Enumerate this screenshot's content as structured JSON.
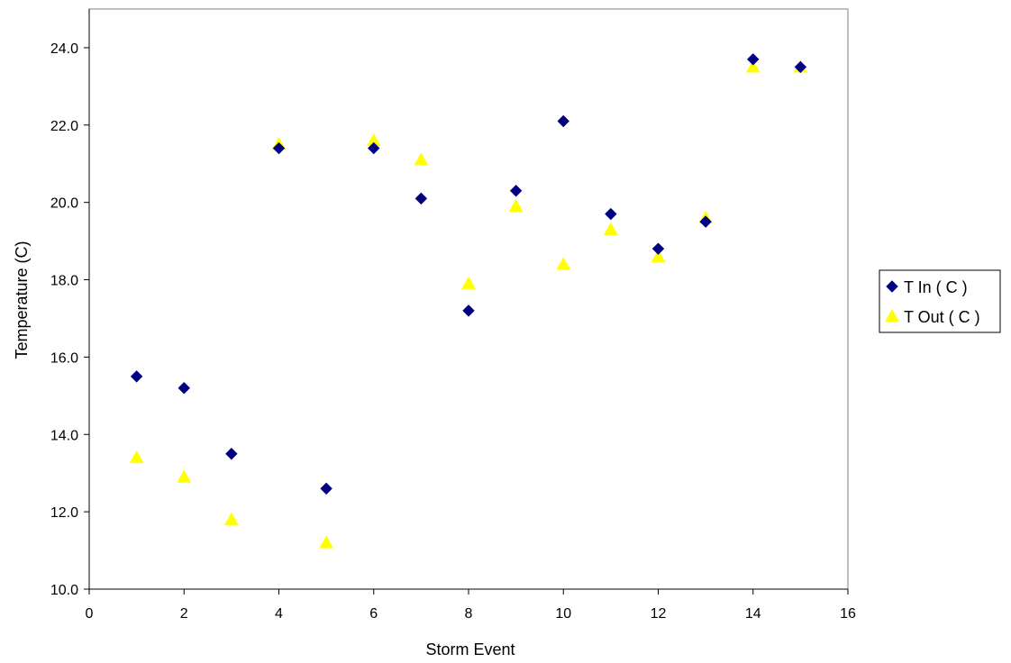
{
  "chart_data": {
    "type": "scatter",
    "title": "",
    "xlabel": "Storm Event",
    "ylabel": "Temperature (C)",
    "xlim": [
      0,
      16
    ],
    "ylim": [
      10,
      25
    ],
    "x_ticks": [
      "0",
      "2",
      "4",
      "6",
      "8",
      "10",
      "12",
      "14",
      "16"
    ],
    "y_ticks": [
      "10.0",
      "12.0",
      "14.0",
      "16.0",
      "18.0",
      "20.0",
      "22.0",
      "24.0"
    ],
    "grid": false,
    "legend_position": "right",
    "series": [
      {
        "name": "T In ( C )",
        "marker": "diamond",
        "color": "#000080",
        "x": [
          1,
          2,
          3,
          4,
          5,
          6,
          7,
          8,
          9,
          10,
          11,
          12,
          13,
          14,
          15
        ],
        "y": [
          15.5,
          15.2,
          13.5,
          21.4,
          12.6,
          21.4,
          20.1,
          17.2,
          20.3,
          22.1,
          19.7,
          18.8,
          19.5,
          23.7,
          23.5
        ]
      },
      {
        "name": "T Out ( C )",
        "marker": "triangle",
        "color": "#FFFF00",
        "x": [
          1,
          2,
          3,
          4,
          5,
          6,
          7,
          8,
          9,
          10,
          11,
          12,
          13,
          14,
          15
        ],
        "y": [
          13.4,
          12.9,
          11.8,
          21.5,
          11.2,
          21.6,
          21.1,
          17.9,
          19.9,
          18.4,
          19.3,
          18.6,
          19.6,
          23.5,
          23.5
        ]
      }
    ]
  }
}
